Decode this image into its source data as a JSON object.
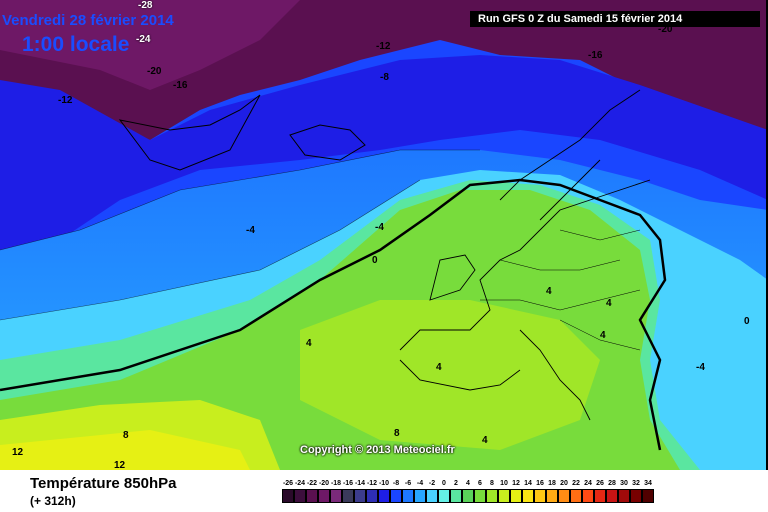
{
  "header": {
    "date": "Vendredi 28 février 2014",
    "hour": "1:00 locale",
    "run": "Run GFS 0 Z du Samedi 15 février 2014"
  },
  "copyright": "Copyright © 2013 Meteociel.fr",
  "footer": {
    "title": "Température 850hPa",
    "subtitle": "(+ 312h)"
  },
  "legend": {
    "values": [
      "-26",
      "-24",
      "-22",
      "-20",
      "-18",
      "-16",
      "-14",
      "-12",
      "-10",
      "-8",
      "-6",
      "-4",
      "-2",
      "0",
      "2",
      "4",
      "6",
      "8",
      "10",
      "12",
      "14",
      "16",
      "18",
      "20",
      "22",
      "24",
      "26",
      "28",
      "30",
      "32",
      "34"
    ],
    "colors": [
      "#2a0a2a",
      "#3c0e3c",
      "#5a1050",
      "#6e1866",
      "#7a2a7a",
      "#3a3a5a",
      "#3c3c8c",
      "#2e2eb4",
      "#1e1ee6",
      "#1a46ff",
      "#1e78ff",
      "#28a6ff",
      "#4ad2ff",
      "#64f0e6",
      "#5ae6a0",
      "#5ad25a",
      "#78dc3c",
      "#a0e628",
      "#c8ee1e",
      "#e6f014",
      "#fae614",
      "#ffc814",
      "#ffaa14",
      "#ff8c14",
      "#ff6e14",
      "#ff4a14",
      "#e62814",
      "#c81414",
      "#a00a0a",
      "#780000",
      "#500000"
    ]
  },
  "map_labels": [
    {
      "text": "-28",
      "kind": "isotherm"
    },
    {
      "text": "-24",
      "kind": "isotherm"
    },
    {
      "text": "-20",
      "kind": "isotherm"
    },
    {
      "text": "-16",
      "kind": "isotherm"
    },
    {
      "text": "-12",
      "kind": "isotherm"
    },
    {
      "text": "-12",
      "kind": "isotherm"
    },
    {
      "text": "-8",
      "kind": "isotherm"
    },
    {
      "text": "-16",
      "kind": "isotherm"
    },
    {
      "text": "-20",
      "kind": "isotherm"
    },
    {
      "text": "-4",
      "kind": "isotherm"
    },
    {
      "text": "-4",
      "kind": "isotherm"
    },
    {
      "text": "0",
      "kind": "isotherm"
    },
    {
      "text": "4",
      "kind": "isotherm"
    },
    {
      "text": "4",
      "kind": "isotherm"
    },
    {
      "text": "4",
      "kind": "isotherm"
    },
    {
      "text": "4",
      "kind": "isotherm"
    },
    {
      "text": "4",
      "kind": "isotherm"
    },
    {
      "text": "8",
      "kind": "isotherm"
    },
    {
      "text": "8",
      "kind": "isotherm"
    },
    {
      "text": "4",
      "kind": "isotherm"
    },
    {
      "text": "12",
      "kind": "isotherm"
    },
    {
      "text": "12",
      "kind": "isotherm"
    },
    {
      "text": "0",
      "kind": "isotherm"
    },
    {
      "text": "-4",
      "kind": "isotherm"
    }
  ]
}
